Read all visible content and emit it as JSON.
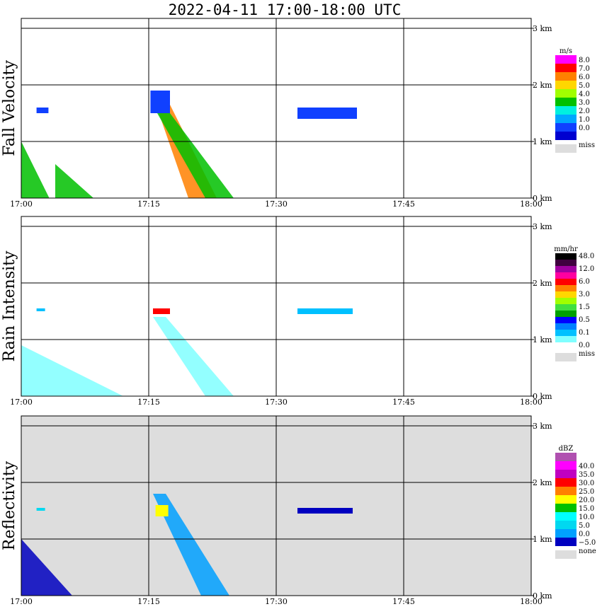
{
  "title": "2022-04-11   17:00-18:00 UTC",
  "x_ticks": [
    "17:00",
    "17:15",
    "17:30",
    "17:45",
    "18:00"
  ],
  "height_ticks": [
    "0 km",
    "1 km",
    "2 km",
    "3 km"
  ],
  "colors": {
    "missing": "#dddddd",
    "grid": "#000000"
  },
  "chart_data": [
    {
      "type": "heatmap",
      "ylabel": "Fall Velocity",
      "unit": "m/s",
      "xlim": [
        "17:00",
        "18:00"
      ],
      "ylim_km": [
        0,
        3.2
      ],
      "colorbar": [
        {
          "label": "8.0",
          "color": "#ff00ff"
        },
        {
          "label": "7.0",
          "color": "#ff0000"
        },
        {
          "label": "6.0",
          "color": "#ff8000"
        },
        {
          "label": "5.0",
          "color": "#ffd700"
        },
        {
          "label": "4.0",
          "color": "#a0ff00"
        },
        {
          "label": "3.0",
          "color": "#00c000"
        },
        {
          "label": "2.0",
          "color": "#00f0e0"
        },
        {
          "label": "1.0",
          "color": "#00a8ff"
        },
        {
          "label": "0.0",
          "color": "#1040ff"
        },
        {
          "label": "",
          "color": "#0000d0"
        }
      ],
      "missing_label": "miss",
      "features": [
        {
          "kind": "fill",
          "minute_start": 0.0,
          "minute_end": 3.3,
          "alt_km": [
            0,
            1.0
          ],
          "color": "#00c000"
        },
        {
          "kind": "fill",
          "minute_start": 4.0,
          "minute_end": 8.5,
          "alt_km": [
            0,
            0.6
          ],
          "color": "#00c000"
        },
        {
          "kind": "streak",
          "minute_start": 15.5,
          "minute_end": 23.0,
          "alt_km": [
            1.8,
            0.0
          ],
          "color": "#ff8000"
        },
        {
          "kind": "streak",
          "minute_start": 16.0,
          "minute_end": 25.0,
          "alt_km": [
            1.5,
            0.0
          ],
          "color": "#00c000"
        },
        {
          "kind": "blob",
          "minute_start": 15.2,
          "minute_end": 17.5,
          "alt_km": [
            1.5,
            1.9
          ],
          "color": "#1040ff"
        },
        {
          "kind": "blob",
          "minute_start": 1.8,
          "minute_end": 3.2,
          "alt_km": [
            1.5,
            1.6
          ],
          "color": "#1040ff"
        },
        {
          "kind": "blob",
          "minute_start": 32.5,
          "minute_end": 39.5,
          "alt_km": [
            1.4,
            1.6
          ],
          "color": "#1040ff"
        }
      ]
    },
    {
      "type": "heatmap",
      "ylabel": "Rain Intensity",
      "unit": "mm/hr",
      "xlim": [
        "17:00",
        "18:00"
      ],
      "ylim_km": [
        0,
        3.2
      ],
      "colorbar": [
        {
          "label": "48.0",
          "color": "#000000"
        },
        {
          "label": "",
          "color": "#400040"
        },
        {
          "label": "12.0",
          "color": "#a000a0"
        },
        {
          "label": "",
          "color": "#ff00a0"
        },
        {
          "label": "6.0",
          "color": "#ff0000"
        },
        {
          "label": "",
          "color": "#ff8000"
        },
        {
          "label": "3.0",
          "color": "#ffd700"
        },
        {
          "label": "",
          "color": "#a0ff00"
        },
        {
          "label": "1.5",
          "color": "#40e040"
        },
        {
          "label": "",
          "color": "#00a000"
        },
        {
          "label": "0.5",
          "color": "#0000ff"
        },
        {
          "label": "",
          "color": "#0080ff"
        },
        {
          "label": "0.1",
          "color": "#00c0ff"
        },
        {
          "label": "",
          "color": "#80ffff"
        },
        {
          "label": "0.0",
          "color": "#ffffff"
        }
      ],
      "missing_label": "miss",
      "features": [
        {
          "kind": "fill",
          "minute_start": 0.0,
          "minute_end": 12.0,
          "alt_km": [
            0,
            0.9
          ],
          "color": "#80ffff"
        },
        {
          "kind": "streak",
          "minute_start": 15.5,
          "minute_end": 25.0,
          "alt_km": [
            1.4,
            0.0
          ],
          "color": "#80ffff"
        },
        {
          "kind": "blob",
          "minute_start": 15.5,
          "minute_end": 17.5,
          "alt_km": [
            1.45,
            1.55
          ],
          "color": "#ff0000"
        },
        {
          "kind": "blob",
          "minute_start": 1.8,
          "minute_end": 2.8,
          "alt_km": [
            1.5,
            1.55
          ],
          "color": "#00c0ff"
        },
        {
          "kind": "blob",
          "minute_start": 32.5,
          "minute_end": 39.0,
          "alt_km": [
            1.45,
            1.55
          ],
          "color": "#00c0ff"
        }
      ]
    },
    {
      "type": "heatmap",
      "ylabel": "Reflectivity",
      "unit": "dBZ",
      "xlim": [
        "17:00",
        "18:00"
      ],
      "ylim_km": [
        0,
        3.2
      ],
      "background": "#dddddd",
      "colorbar": [
        {
          "label": "",
          "color": "#b050b0"
        },
        {
          "label": "40.0",
          "color": "#ff00ff"
        },
        {
          "label": "35.0",
          "color": "#c000c0"
        },
        {
          "label": "30.0",
          "color": "#ff0000"
        },
        {
          "label": "25.0",
          "color": "#ff8000"
        },
        {
          "label": "20.0",
          "color": "#ffff00"
        },
        {
          "label": "15.0",
          "color": "#00c000"
        },
        {
          "label": "10.0",
          "color": "#00ffff"
        },
        {
          "label": "5.0",
          "color": "#00d8f0"
        },
        {
          "label": "0.0",
          "color": "#00a0ff"
        },
        {
          "label": "−5.0",
          "color": "#0000c0"
        }
      ],
      "missing_label": "none",
      "features": [
        {
          "kind": "fill",
          "minute_start": 0.0,
          "minute_end": 6.0,
          "alt_km": [
            0,
            1.0
          ],
          "color": "#0000c0"
        },
        {
          "kind": "streak",
          "minute_start": 15.5,
          "minute_end": 24.5,
          "alt_km": [
            1.8,
            0.0
          ],
          "color": "#00a0ff"
        },
        {
          "kind": "blob",
          "minute_start": 15.8,
          "minute_end": 17.3,
          "alt_km": [
            1.4,
            1.6
          ],
          "color": "#ffff00"
        },
        {
          "kind": "blob",
          "minute_start": 1.8,
          "minute_end": 2.8,
          "alt_km": [
            1.5,
            1.55
          ],
          "color": "#00d8f0"
        },
        {
          "kind": "blob",
          "minute_start": 32.5,
          "minute_end": 39.0,
          "alt_km": [
            1.45,
            1.55
          ],
          "color": "#0000c0"
        }
      ]
    }
  ]
}
